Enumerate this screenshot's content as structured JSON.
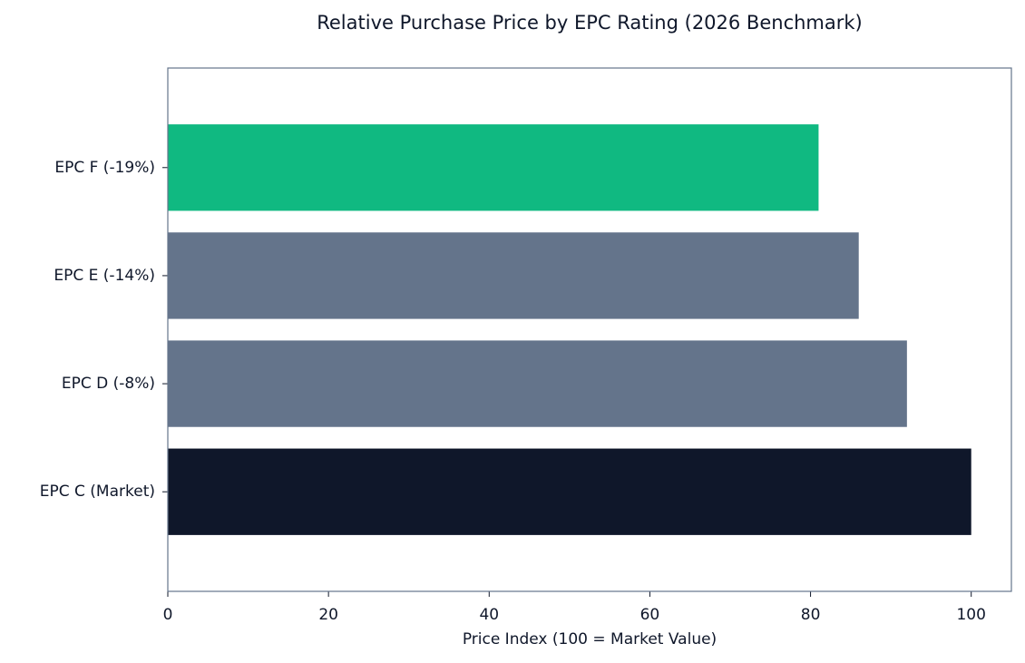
{
  "chart_data": {
    "type": "barh",
    "title": "Relative Purchase Price by EPC Rating (2026 Benchmark)",
    "x_label": "Price Index (100 = Market Value)",
    "categories": [
      "EPC C (Market)",
      "EPC D (-8%)",
      "EPC E (-14%)",
      "EPC F (-19%)"
    ],
    "values": [
      100,
      92,
      86,
      81
    ],
    "colors": [
      "#0f172a",
      "#64748b",
      "#64748b",
      "#10b981"
    ],
    "xlim": [
      0,
      105
    ],
    "xticks": [
      0,
      20,
      40,
      60,
      80,
      100
    ],
    "grid": false
  }
}
